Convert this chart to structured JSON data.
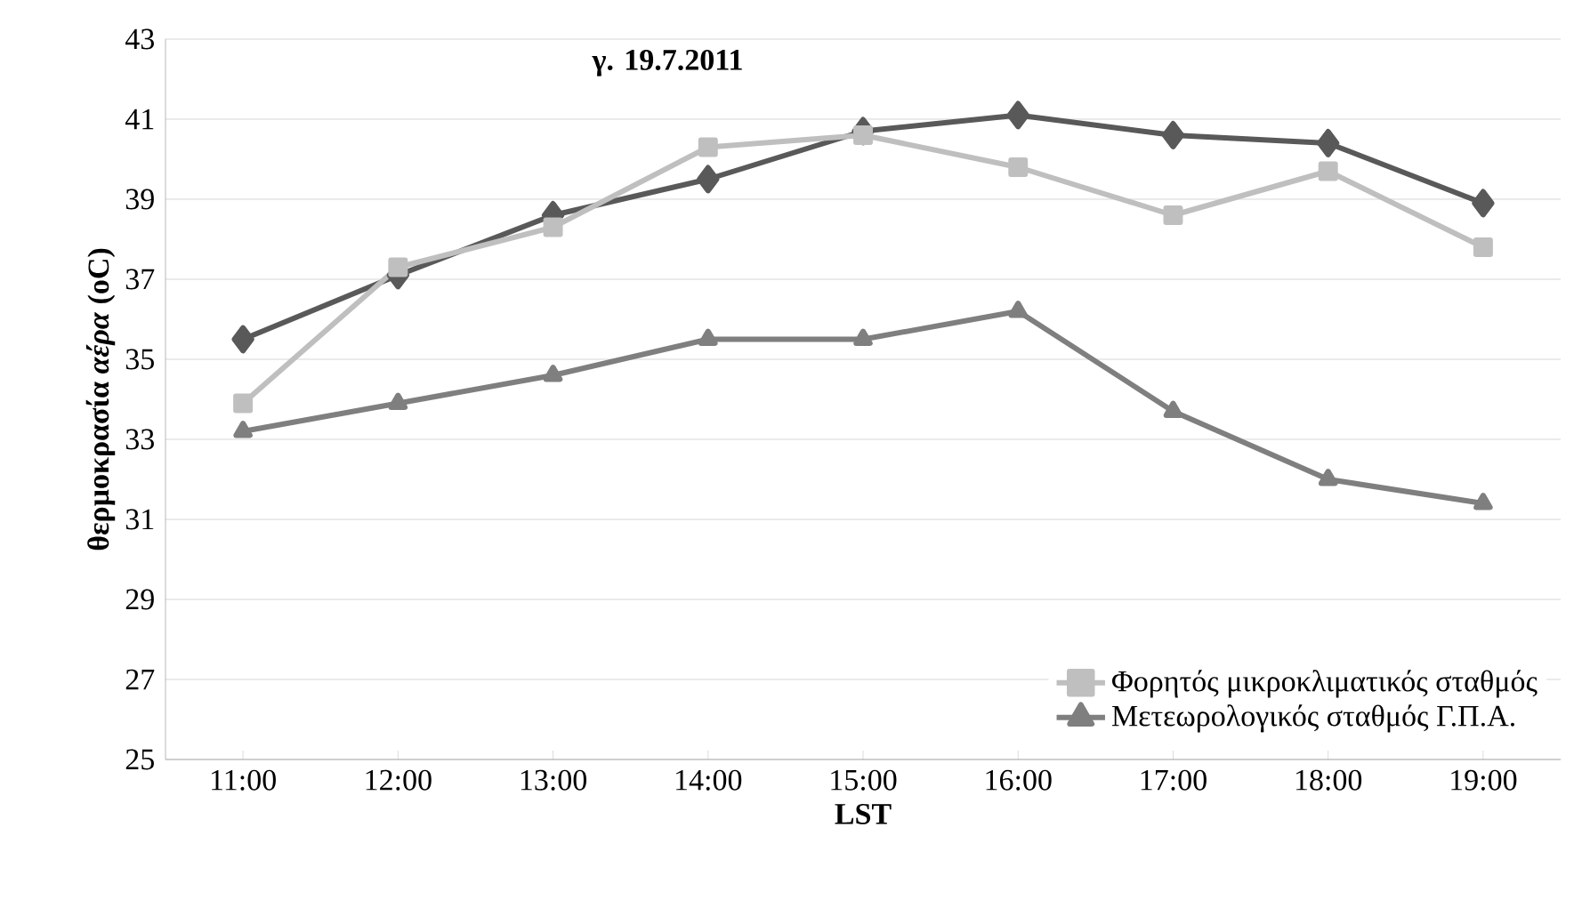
{
  "chart_data": {
    "type": "line",
    "title": "γ. 19.7.2011",
    "xlabel": "LST",
    "ylabel": "θερμοκρασία *αέρα* (oC)",
    "categories": [
      "11:00",
      "12:00",
      "13:00",
      "14:00",
      "15:00",
      "16:00",
      "17:00",
      "18:00",
      "19:00"
    ],
    "series": [
      {
        "color": "#595959",
        "marker": "diamond",
        "values": [
          35.5,
          37.1,
          38.6,
          39.5,
          40.7,
          41.1,
          40.6,
          40.4,
          38.9
        ]
      },
      {
        "name": "Φορητός μικροκλιματικός σταθμός",
        "color": "#bfbfbf",
        "marker": "square",
        "values": [
          33.9,
          37.3,
          38.3,
          40.3,
          40.6,
          39.8,
          38.6,
          39.7,
          37.8
        ]
      },
      {
        "name": "Μετεωρολογικός σταθμός Γ.Π.Α.",
        "color": "#7f7f7f",
        "marker": "triangle",
        "values": [
          33.2,
          33.9,
          34.6,
          35.5,
          35.5,
          36.2,
          33.7,
          32.0,
          31.4
        ]
      }
    ],
    "ylim": [
      25,
      43
    ],
    "yticks": [
      25,
      27,
      29,
      31,
      33,
      35,
      37,
      39,
      41,
      43
    ],
    "grid": "y",
    "legend": "bottom right",
    "line_style": "solid"
  }
}
